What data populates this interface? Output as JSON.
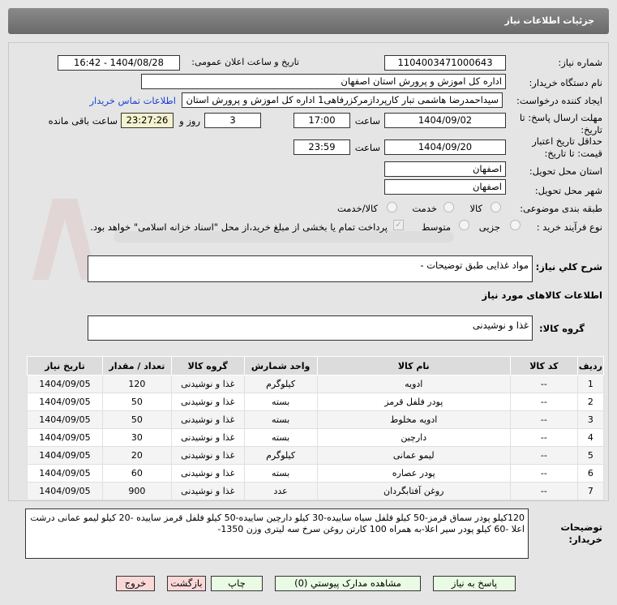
{
  "header": {
    "title": "جزئیات اطلاعات نیاز"
  },
  "fields": {
    "need_number_label": "شماره نیاز:",
    "need_number": "1104003471000643",
    "announce_label": "تاریخ و ساعت اعلان عمومی:",
    "announce_value": "1404/08/28 - 16:42",
    "buyer_org_label": "نام دستگاه خریدار:",
    "buyer_org": "اداره کل اموزش و پرورش استان اصفهان",
    "creator_label": "ایجاد کننده درخواست:",
    "creator": "سیداحمدرضا هاشمی تبار کارپردازمرکزرفاهی1 اداره کل اموزش و پرورش استان اصفهان",
    "contact_link": "اطلاعات تماس خریدار",
    "deadline_label": "مهلت ارسال پاسخ: تا تاریخ:",
    "deadline_date": "1404/09/02",
    "time_label": "ساعت",
    "deadline_time": "17:00",
    "days": "3",
    "days_label": "روز و",
    "remaining": "23:27:26",
    "remaining_label": "ساعت باقی مانده",
    "validity_label": "حداقل تاریخ اعتبار قیمت: تا تاریخ:",
    "validity_date": "1404/09/20",
    "validity_time": "23:59",
    "province_label": "استان محل تحویل:",
    "province": "اصفهان",
    "city_label": "شهر محل تحویل:",
    "city": "اصفهان",
    "category_label": "طبقه بندی موضوعی:",
    "category_options": [
      "کالا",
      "خدمت",
      "کالا/خدمت"
    ],
    "category_selected": "کالا",
    "process_label": "نوع فرآیند خرید :",
    "process_options": [
      "جزیی",
      "متوسط"
    ],
    "payment_note": "پرداخت تمام یا بخشی از مبلغ خرید،از محل \"اسناد خزانه اسلامی\" خواهد بود.",
    "summary_label": "شرح کلي نياز:",
    "summary": "مواد غذایی طبق توضیحات -",
    "goods_info_title": "اطلاعات کالاهای مورد نیاز",
    "goods_group_label": "گروه کالا:",
    "goods_group": "غذا و نوشیدنی"
  },
  "table": {
    "headers": [
      "ردیف",
      "کد کالا",
      "نام کالا",
      "واحد شمارش",
      "گروه کالا",
      "تعداد / مقدار",
      "تاریخ نیاز"
    ],
    "rows": [
      [
        "1",
        "--",
        "ادویه",
        "کیلوگرم",
        "غذا و نوشیدنی",
        "120",
        "1404/09/05"
      ],
      [
        "2",
        "--",
        "پودر فلفل قرمز",
        "بسته",
        "غذا و نوشیدنی",
        "50",
        "1404/09/05"
      ],
      [
        "3",
        "--",
        "ادویه مخلوط",
        "بسته",
        "غذا و نوشیدنی",
        "50",
        "1404/09/05"
      ],
      [
        "4",
        "--",
        "دارچین",
        "بسته",
        "غذا و نوشیدنی",
        "30",
        "1404/09/05"
      ],
      [
        "5",
        "--",
        "لیمو عمانی",
        "کیلوگرم",
        "غذا و نوشیدنی",
        "20",
        "1404/09/05"
      ],
      [
        "6",
        "--",
        "پودر عصاره",
        "بسته",
        "غذا و نوشیدنی",
        "60",
        "1404/09/05"
      ],
      [
        "7",
        "--",
        "روغن آفتابگردان",
        "عدد",
        "غذا و نوشیدنی",
        "900",
        "1404/09/05"
      ]
    ]
  },
  "buyer_notes": {
    "label": "توضیحات خریدار:",
    "text": "120کیلو پودر سماق قرمز-50 کیلو فلفل سیاه ساییده-30 کیلو دارچین ساییده-50 کیلو فلفل قرمز ساییده -20 کیلو لیمو عمانی درشت اعلا -60 کیلو پودر سیر اعلا-به همراه 100 کارتن روغن سرخ سه لیتری وزن 1350-"
  },
  "buttons": {
    "reply": "پاسخ به نیاز",
    "attachments": "مشاهده مدارک پیوستي (0)",
    "print": "چاپ",
    "back": "بازگشت",
    "exit": "خروج"
  },
  "watermark": "AriaTender.net"
}
